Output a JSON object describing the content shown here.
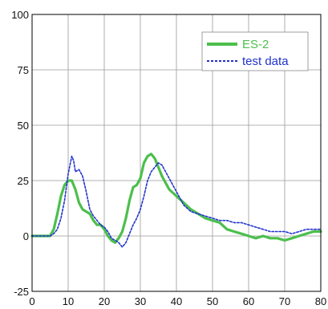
{
  "chart_data": {
    "type": "line",
    "title": "",
    "xlabel": "",
    "ylabel": "",
    "xlim": [
      0,
      80
    ],
    "ylim": [
      -25,
      100
    ],
    "xticks": [
      0,
      10,
      20,
      30,
      40,
      50,
      60,
      70,
      80
    ],
    "yticks": [
      -25,
      0,
      25,
      50,
      75,
      100
    ],
    "xtick_labels": [
      "0",
      "10",
      "20",
      "30",
      "40",
      "50",
      "60",
      "70",
      "80"
    ],
    "ytick_labels": [
      "-25",
      "0",
      "25",
      "50",
      "75",
      "100"
    ],
    "grid": true,
    "legend_position": "top-right",
    "series": [
      {
        "name": "ES-2",
        "color": "#4cbf4c",
        "style": "solid",
        "x": [
          0,
          5,
          6,
          7,
          8,
          9,
          10,
          11,
          12,
          13,
          14,
          15,
          16,
          17,
          18,
          19,
          20,
          21,
          22,
          23,
          24,
          25,
          26,
          27,
          28,
          29,
          30,
          31,
          32,
          33,
          34,
          35,
          36,
          37,
          38,
          40,
          42,
          44,
          46,
          48,
          50,
          52,
          54,
          56,
          58,
          60,
          62,
          64,
          66,
          68,
          70,
          72,
          74,
          76,
          78,
          80
        ],
        "y": [
          0,
          0,
          3,
          10,
          18,
          23,
          25,
          25,
          21,
          15,
          12,
          11,
          10,
          7,
          5,
          5,
          3,
          0,
          -2,
          -3,
          -1,
          2,
          8,
          16,
          22,
          23,
          26,
          33,
          36,
          37,
          35,
          31,
          27,
          24,
          21,
          18,
          15,
          12,
          10,
          8,
          7,
          6,
          3,
          2,
          1,
          0,
          -1,
          0,
          -1,
          -1,
          -2,
          -1,
          0,
          1,
          2,
          2
        ]
      },
      {
        "name": "test data",
        "color": "#2233cc",
        "style": "dotted",
        "x": [
          0,
          5,
          6,
          7,
          8,
          9,
          10,
          11,
          11.5,
          12,
          13,
          14,
          15,
          16,
          17,
          18,
          19,
          20,
          21,
          22,
          23,
          24,
          25,
          26,
          27,
          28,
          29,
          30,
          31,
          32,
          33,
          34,
          35,
          36,
          37,
          38,
          40,
          42,
          44,
          46,
          48,
          50,
          52,
          54,
          56,
          58,
          60,
          62,
          64,
          66,
          68,
          70,
          72,
          74,
          76,
          78,
          80
        ],
        "y": [
          0,
          0,
          1,
          3,
          8,
          16,
          28,
          36,
          34,
          29,
          30,
          27,
          20,
          12,
          9,
          7,
          5,
          4,
          2,
          -1,
          -2,
          -3,
          -5,
          -3,
          1,
          5,
          8,
          12,
          18,
          25,
          29,
          31,
          33,
          32,
          29,
          26,
          20,
          14,
          11,
          10,
          9,
          8,
          7,
          7,
          6,
          6,
          5,
          4,
          3,
          2,
          2,
          2,
          1,
          2,
          3,
          3,
          3
        ]
      }
    ]
  }
}
